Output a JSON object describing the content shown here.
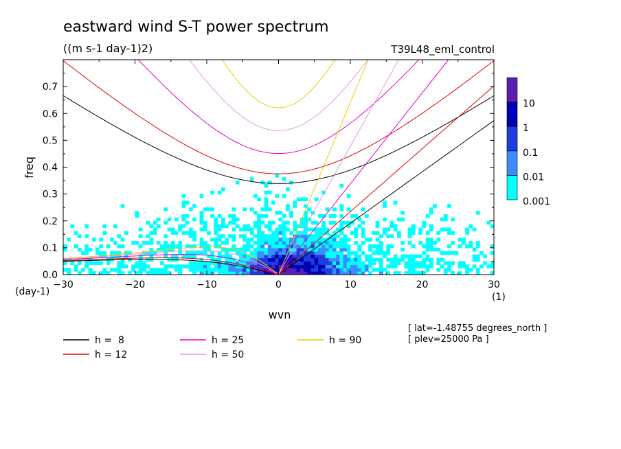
{
  "chart_data": {
    "type": "heatmap",
    "title": "eastward wind S-T power spectrum",
    "subtitle": "((m s-1 day-1)2)",
    "run_label": "T39L48_eml_control",
    "xlabel": "wvn",
    "ylabel": "freq",
    "x_units": "(1)",
    "y_units": "(day-1)",
    "xlim": [
      -30,
      30
    ],
    "ylim": [
      0,
      0.8
    ],
    "x_ticks": [
      -30,
      -20,
      -10,
      0,
      10,
      20,
      30
    ],
    "x_tick_labels": [
      "−30",
      "−20",
      "−10",
      "0",
      "10",
      "20",
      "30"
    ],
    "y_ticks": [
      0,
      0.1,
      0.2,
      0.3,
      0.4,
      0.5,
      0.6,
      0.7
    ],
    "y_tick_labels": [
      "0.0",
      "0.1",
      "0.2",
      "0.3",
      "0.4",
      "0.5",
      "0.6",
      "0.7"
    ],
    "colorbar": {
      "levels": [
        "0.001",
        "0.01",
        "0.1",
        "1",
        "10"
      ],
      "colors": [
        "#00ffff",
        "#3c8cff",
        "#1e3cdc",
        "#0000b4",
        "#5a1eb4"
      ]
    },
    "dispersion_curves": [
      {
        "h": 8,
        "label": "h =  8",
        "color": "#000000"
      },
      {
        "h": 12,
        "label": "h = 12",
        "color": "#e00000"
      },
      {
        "h": 25,
        "label": "h = 25",
        "color": "#e000c8"
      },
      {
        "h": 50,
        "label": "h = 50",
        "color": "#e09ae0"
      },
      {
        "h": 90,
        "label": "h = 90",
        "color": "#f0c800"
      }
    ],
    "annotations": [
      "[ lat=-1.48755 degrees_north ]",
      "[ plev=25000 Pa ]"
    ]
  }
}
